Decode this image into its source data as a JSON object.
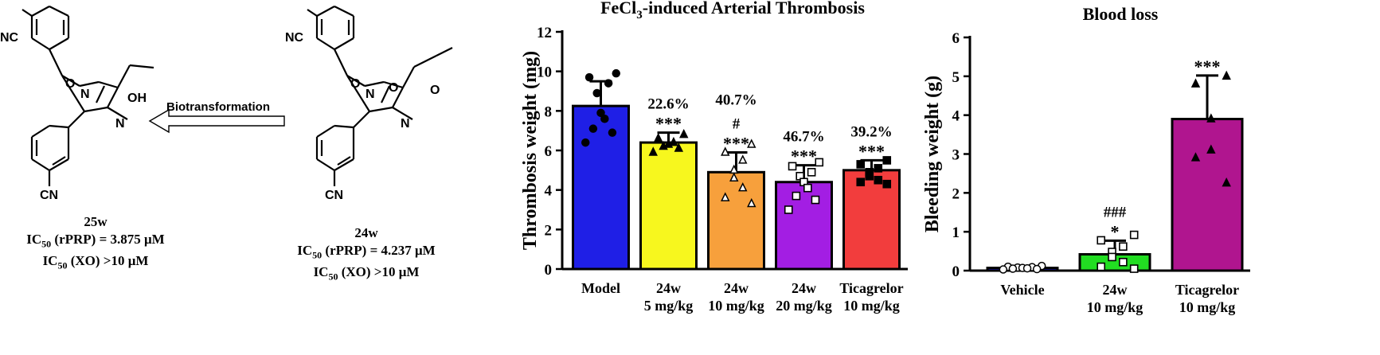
{
  "schemes": {
    "product": {
      "label": "25w",
      "line1_prefix": "IC",
      "line1_sub": "50",
      "line1_suffix": " (rPRP) = 3.875 μM",
      "line2_prefix": "IC",
      "line2_sub": "50",
      "line2_suffix": " (XO) >10 μM"
    },
    "reactant": {
      "label": "24w",
      "line1_prefix": "IC",
      "line1_sub": "50",
      "line1_suffix": " (rPRP) = 4.237 μM",
      "line2_prefix": "IC",
      "line2_sub": "50",
      "line2_suffix": " (XO) >10 μM"
    },
    "arrow_label": "Biotransformation",
    "atoms": {
      "nc": "NC",
      "cn": "CN",
      "oh": "OH",
      "n": "N",
      "o": "O"
    }
  },
  "chart_data": [
    {
      "type": "bar",
      "title_main": "FeCl",
      "title_sub": "3",
      "title_rest": "-induced Arterial Thrombosis",
      "ylabel": "Thrombosis weight (mg)",
      "xlabel": "",
      "ylim": [
        0,
        12
      ],
      "yticks": [
        0,
        2,
        4,
        6,
        8,
        10,
        12
      ],
      "categories": [
        [
          "Model"
        ],
        [
          "24w",
          "5 mg/kg"
        ],
        [
          "24w",
          "10 mg/kg"
        ],
        [
          "24w",
          "20 mg/kg"
        ],
        [
          "Ticagrelor",
          "10 mg/kg"
        ]
      ],
      "values": [
        8.25,
        6.4,
        4.9,
        4.4,
        5.0
      ],
      "errors": [
        1.25,
        0.5,
        1.0,
        0.85,
        0.5
      ],
      "colors": [
        "#1f1fe6",
        "#f7f71e",
        "#f7a03c",
        "#a31ee3",
        "#f23d3d"
      ],
      "markers": [
        "circle",
        "triangle-filled",
        "triangle-open",
        "square-open",
        "square-filled"
      ],
      "points": [
        [
          9.9,
          9.7,
          9.4,
          8.9,
          7.9,
          7.6,
          7.1,
          6.9,
          6.4
        ],
        [
          6.8,
          6.6,
          6.4,
          6.3,
          6.2,
          6.1,
          5.9
        ],
        [
          6.3,
          5.9,
          5.5,
          5.0,
          4.6,
          4.1,
          3.6,
          3.3
        ],
        [
          5.4,
          5.2,
          4.9,
          4.7,
          4.4,
          4.1,
          3.7,
          3.5,
          3.0
        ],
        [
          5.5,
          5.3,
          5.1,
          4.9,
          4.7,
          4.5,
          4.4,
          4.3
        ]
      ],
      "annotations": [
        [],
        [
          "22.6%",
          "***"
        ],
        [
          "40.7%",
          "#",
          "***"
        ],
        [
          "46.7%",
          "***"
        ],
        [
          "39.2%",
          "***"
        ]
      ]
    },
    {
      "type": "bar",
      "title": "Blood loss",
      "ylabel": "Bleeding weight (g)",
      "xlabel": "",
      "ylim": [
        0,
        6
      ],
      "yticks": [
        0,
        1,
        2,
        3,
        4,
        5,
        6
      ],
      "categories": [
        [
          "Vehicle"
        ],
        [
          "24w",
          "10 mg/kg"
        ],
        [
          "Ticagrelor",
          "10 mg/kg"
        ]
      ],
      "values": [
        0.07,
        0.42,
        3.9
      ],
      "errors": [
        0.03,
        0.35,
        1.12
      ],
      "colors": [
        "#1f1fe6",
        "#22dd22",
        "#b0158f"
      ],
      "markers": [
        "circle-open",
        "square-open",
        "triangle-filled"
      ],
      "points": [
        [
          0.12,
          0.1,
          0.09,
          0.08,
          0.07,
          0.06,
          0.05,
          0.04,
          0.03
        ],
        [
          0.92,
          0.78,
          0.62,
          0.48,
          0.35,
          0.22,
          0.1,
          0.05
        ],
        [
          5.0,
          4.8,
          3.9,
          3.1,
          2.9,
          2.25
        ]
      ],
      "annotations": [
        [],
        [
          "###",
          "*"
        ],
        [
          "***"
        ]
      ]
    }
  ]
}
